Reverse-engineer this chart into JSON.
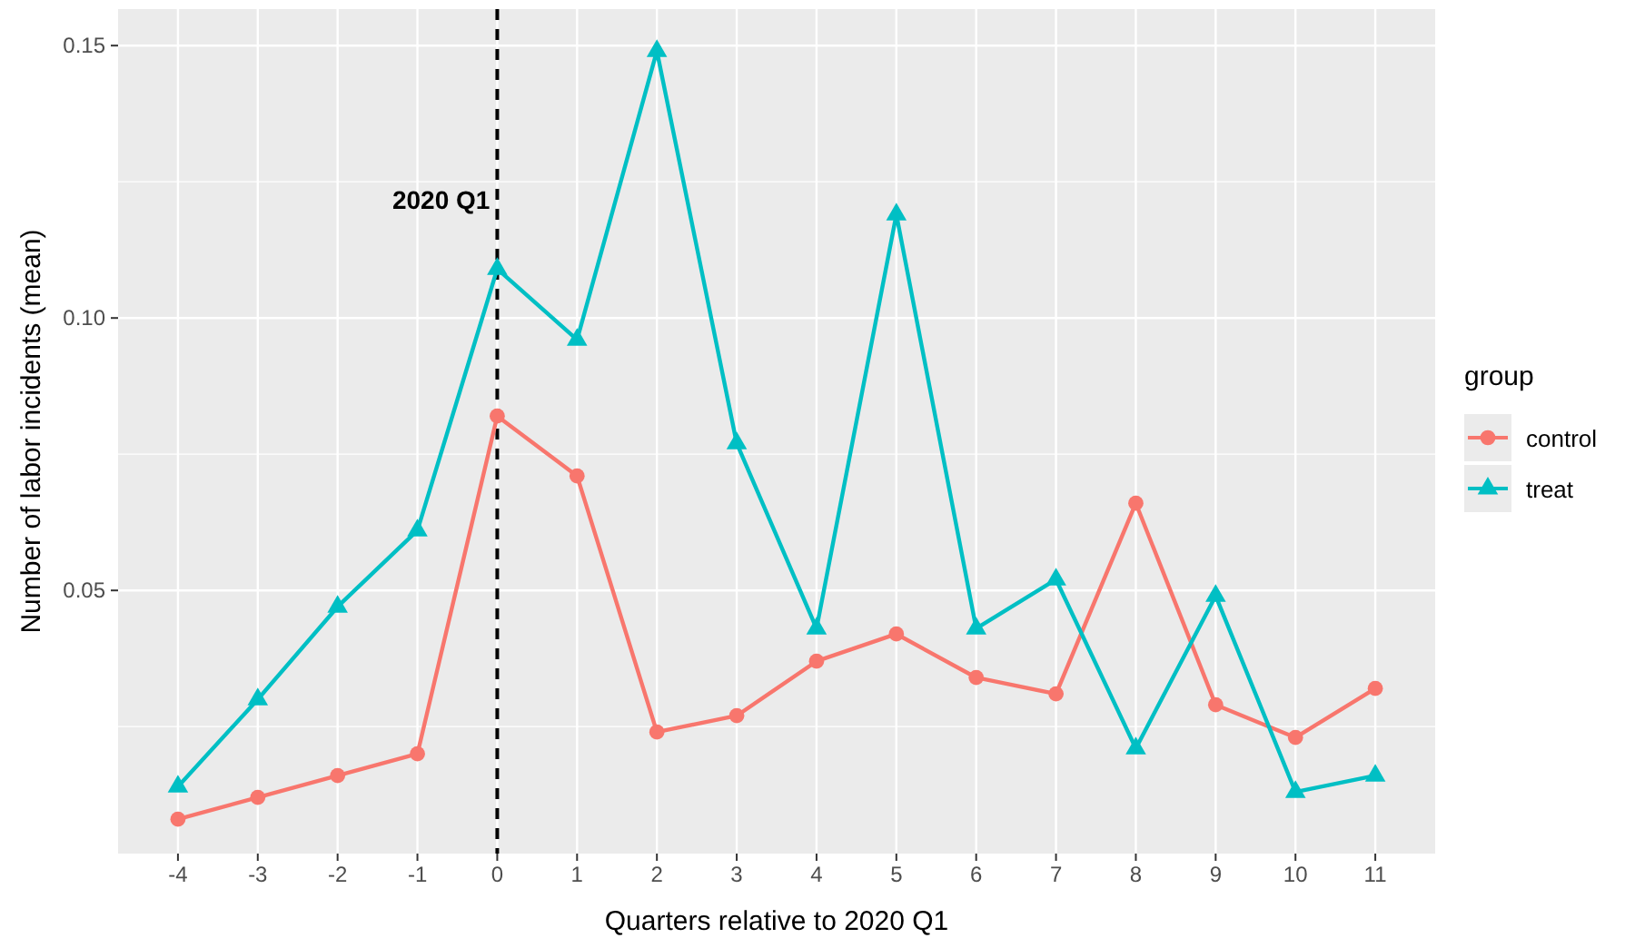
{
  "chart_data": {
    "type": "line",
    "xlabel": "Quarters relative to 2020 Q1",
    "ylabel": "Number of labor incidents (mean)",
    "legend_title": "group",
    "x": [
      -4,
      -3,
      -2,
      -1,
      0,
      1,
      2,
      3,
      4,
      5,
      6,
      7,
      8,
      9,
      10,
      11
    ],
    "series": [
      {
        "name": "control",
        "color": "#f8766d",
        "marker": "circle",
        "values": [
          0.008,
          0.012,
          0.016,
          0.02,
          0.082,
          0.071,
          0.024,
          0.027,
          0.037,
          0.042,
          0.034,
          0.031,
          0.066,
          0.029,
          0.023,
          0.032
        ]
      },
      {
        "name": "treat",
        "color": "#00bfc4",
        "marker": "triangle",
        "values": [
          0.014,
          0.03,
          0.047,
          0.061,
          0.109,
          0.096,
          0.149,
          0.077,
          0.043,
          0.119,
          0.043,
          0.052,
          0.021,
          0.049,
          0.013,
          0.016
        ]
      }
    ],
    "xlim": [
      -4.75,
      11.75
    ],
    "xticks": [
      -4,
      -3,
      -2,
      -1,
      0,
      1,
      2,
      3,
      4,
      5,
      6,
      7,
      8,
      9,
      10,
      11
    ],
    "ylim": [
      0.0017,
      0.1567
    ],
    "yticks": [
      0.05,
      {
        "value": 0.1,
        "label": "0.10"
      },
      0.15
    ],
    "ref_lines": [
      {
        "axis": "x",
        "value": 0,
        "label": "2020 Q1",
        "color": "#000000",
        "line_style": "dashed"
      }
    ],
    "grid": true,
    "legend": "right",
    "line_style": "solid"
  }
}
